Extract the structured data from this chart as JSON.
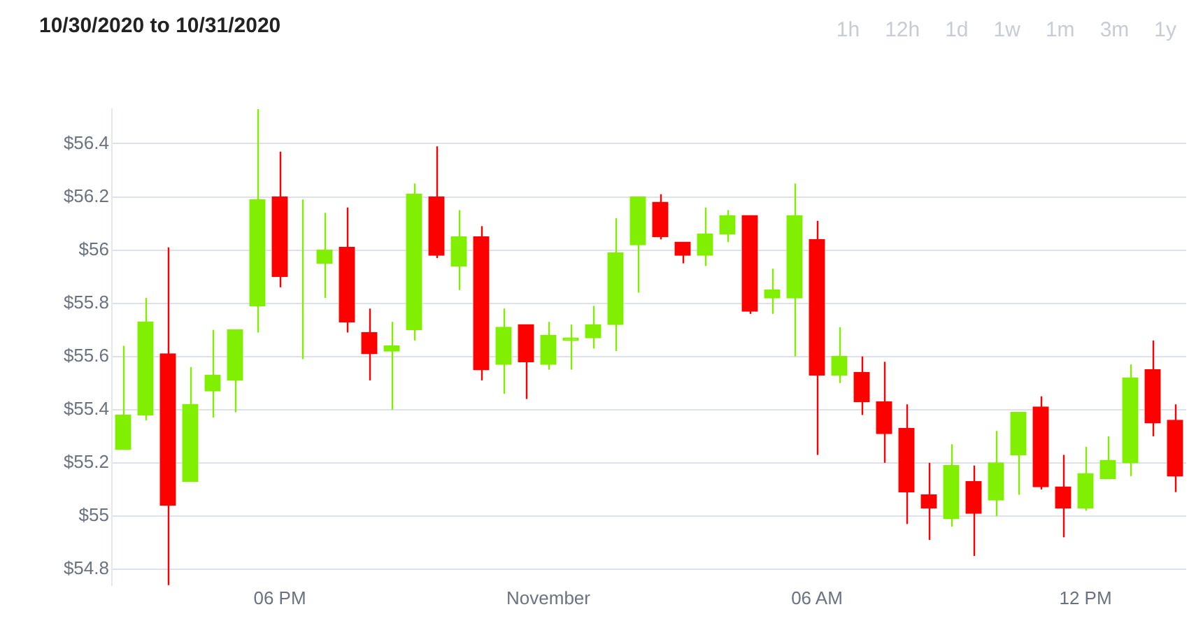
{
  "chart_data": {
    "type": "candlestick",
    "title": "10/30/2020 to 10/31/2020",
    "annotations": [
      "1h",
      "12h",
      "1d",
      "1w",
      "1m",
      "3m",
      "1y"
    ],
    "categories": [
      null,
      null,
      null,
      null,
      null,
      null,
      null,
      "06 PM",
      null,
      null,
      null,
      null,
      null,
      null,
      null,
      null,
      null,
      null,
      null,
      "November",
      null,
      null,
      null,
      null,
      null,
      null,
      null,
      null,
      null,
      null,
      null,
      "06 AM",
      null,
      null,
      null,
      null,
      null,
      null,
      null,
      null,
      null,
      null,
      null,
      "12 PM",
      null,
      null,
      null,
      null
    ],
    "ohlc": [
      [
        55.25,
        55.64,
        55.25,
        55.38
      ],
      [
        55.38,
        55.82,
        55.36,
        55.73
      ],
      [
        55.61,
        56.01,
        54.74,
        55.04
      ],
      [
        55.13,
        55.56,
        55.13,
        55.42
      ],
      [
        55.47,
        55.7,
        55.37,
        55.53
      ],
      [
        55.51,
        55.7,
        55.39,
        55.7
      ],
      [
        55.79,
        56.53,
        55.69,
        56.19
      ],
      [
        56.2,
        56.37,
        55.86,
        55.9
      ],
      [
        55.92,
        56.19,
        55.59,
        55.92
      ],
      [
        55.95,
        56.14,
        55.82,
        56
      ],
      [
        56.01,
        56.16,
        55.69,
        55.73
      ],
      [
        55.69,
        55.78,
        55.51,
        55.61
      ],
      [
        55.62,
        55.73,
        55.4,
        55.64
      ],
      [
        55.7,
        56.25,
        55.66,
        56.21
      ],
      [
        56.2,
        56.39,
        55.97,
        55.98
      ],
      [
        55.94,
        56.15,
        55.85,
        56.05
      ],
      [
        56.05,
        56.09,
        55.51,
        55.55
      ],
      [
        55.57,
        55.78,
        55.46,
        55.71
      ],
      [
        55.72,
        55.72,
        55.44,
        55.58
      ],
      [
        55.57,
        55.73,
        55.55,
        55.68
      ],
      [
        55.66,
        55.72,
        55.55,
        55.67
      ],
      [
        55.67,
        55.79,
        55.63,
        55.72
      ],
      [
        55.72,
        56.12,
        55.62,
        55.99
      ],
      [
        56.02,
        56.2,
        55.84,
        56.2
      ],
      [
        56.18,
        56.21,
        56.04,
        56.05
      ],
      [
        56.03,
        56.03,
        55.95,
        55.98
      ],
      [
        55.98,
        56.16,
        55.94,
        56.06
      ],
      [
        56.06,
        56.15,
        56.03,
        56.13
      ],
      [
        56.13,
        56.13,
        55.76,
        55.77
      ],
      [
        55.82,
        55.93,
        55.76,
        55.85
      ],
      [
        55.82,
        56.25,
        55.6,
        56.13
      ],
      [
        56.04,
        56.11,
        55.23,
        55.53
      ],
      [
        55.53,
        55.71,
        55.5,
        55.6
      ],
      [
        55.54,
        55.6,
        55.38,
        55.43
      ],
      [
        55.43,
        55.58,
        55.2,
        55.31
      ],
      [
        55.33,
        55.42,
        54.97,
        55.09
      ],
      [
        55.08,
        55.2,
        54.91,
        55.03
      ],
      [
        54.99,
        55.27,
        54.96,
        55.19
      ],
      [
        55.13,
        55.19,
        54.85,
        55.01
      ],
      [
        55.06,
        55.32,
        55,
        55.2
      ],
      [
        55.23,
        55.39,
        55.08,
        55.39
      ],
      [
        55.41,
        55.45,
        55.1,
        55.11
      ],
      [
        55.11,
        55.23,
        54.92,
        55.03
      ],
      [
        55.03,
        55.26,
        55.02,
        55.16
      ],
      [
        55.14,
        55.3,
        55.14,
        55.21
      ],
      [
        55.2,
        55.57,
        55.15,
        55.52
      ],
      [
        55.55,
        55.66,
        55.3,
        55.35
      ],
      [
        55.36,
        55.42,
        55.09,
        55.15
      ]
    ],
    "colors": [
      "#80f000",
      "#80f000",
      "#ff0000",
      "#80f000",
      "#80f000",
      "#80f000",
      "#80f000",
      "#ff0000",
      "#80f000",
      "#80f000",
      "#ff0000",
      "#ff0000",
      "#80f000",
      "#80f000",
      "#ff0000",
      "#80f000",
      "#ff0000",
      "#80f000",
      "#ff0000",
      "#80f000",
      "#80f000",
      "#80f000",
      "#80f000",
      "#80f000",
      "#ff0000",
      "#ff0000",
      "#80f000",
      "#80f000",
      "#ff0000",
      "#80f000",
      "#80f000",
      "#ff0000",
      "#80f000",
      "#ff0000",
      "#ff0000",
      "#ff0000",
      "#ff0000",
      "#80f000",
      "#ff0000",
      "#80f000",
      "#80f000",
      "#ff0000",
      "#ff0000",
      "#80f000",
      "#80f000",
      "#80f000",
      "#ff0000",
      "#ff0000"
    ],
    "yticks": [
      {
        "value": 54.8,
        "label": "$54.8"
      },
      {
        "value": 55,
        "label": "$55"
      },
      {
        "value": 55.2,
        "label": "$55.2"
      },
      {
        "value": 55.4,
        "label": "$55.4"
      },
      {
        "value": 55.6,
        "label": "$55.6"
      },
      {
        "value": 55.8,
        "label": "$55.8"
      },
      {
        "value": 56,
        "label": "$56"
      },
      {
        "value": 56.2,
        "label": "$56.2"
      },
      {
        "value": 56.4,
        "label": "$56.4"
      }
    ],
    "ylim": [
      54.74,
      56.53
    ],
    "grid": "y",
    "legend": false
  }
}
